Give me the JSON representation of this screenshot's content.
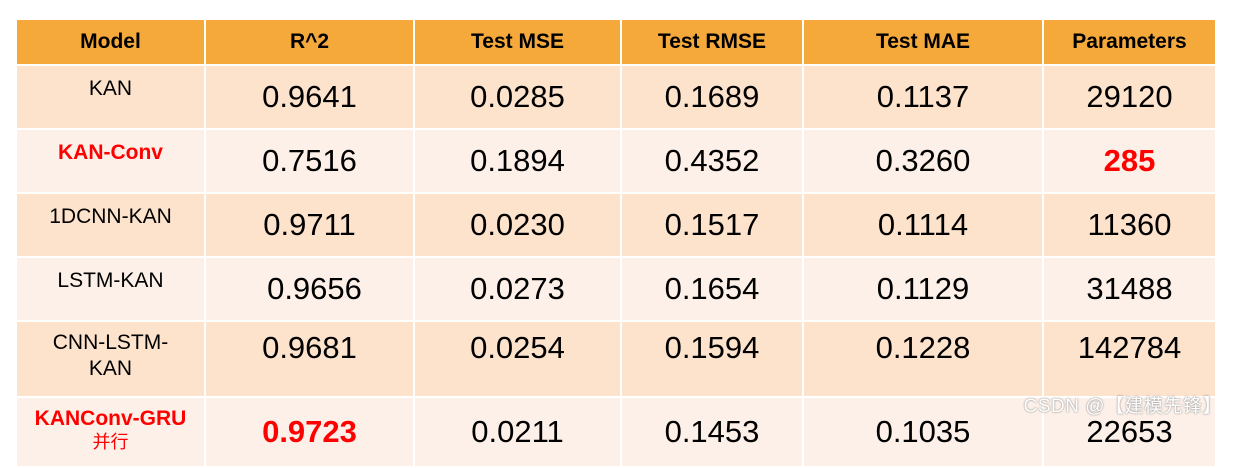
{
  "table": {
    "headers": [
      "Model",
      "R^2",
      "Test MSE",
      "Test RMSE",
      "Test MAE",
      "Parameters"
    ],
    "rows": [
      {
        "model": "KAN",
        "model_cn": "",
        "r2": "0.9641",
        "mse": "0.0285",
        "rmse": "0.1689",
        "mae": "0.1137",
        "params": "29120"
      },
      {
        "model": "KAN-Conv",
        "model_cn": "",
        "r2": "0.7516",
        "mse": "0.1894",
        "rmse": "0.4352",
        "mae": "0.3260",
        "params": "285"
      },
      {
        "model": "1DCNN-KAN",
        "model_cn": "",
        "r2": "0.9711",
        "mse": "0.0230",
        "rmse": "0.1517",
        "mae": "0.1114",
        "params": "11360"
      },
      {
        "model": "LSTM-KAN",
        "model_cn": "",
        "r2": "0.9656",
        "mse": "0.0273",
        "rmse": "0.1654",
        "mae": "0.1129",
        "params": "31488"
      },
      {
        "model": "CNN-LSTM-KAN",
        "model_cn": "",
        "r2": "0.9681",
        "mse": "0.0254",
        "rmse": "0.1594",
        "mae": "0.1228",
        "params": "142784"
      },
      {
        "model": "KANConv-GRU",
        "model_cn": "并行",
        "r2": "0.9723",
        "mse": "0.0211",
        "rmse": "0.1453",
        "mae": "0.1035",
        "params": "22653"
      }
    ]
  },
  "highlights": {
    "color": "#ff0000",
    "header_color": "#f5a93b",
    "row_colors": [
      "#fde2cc",
      "#fdf0e8"
    ]
  },
  "watermark": "CSDN @【建模先锋】"
}
